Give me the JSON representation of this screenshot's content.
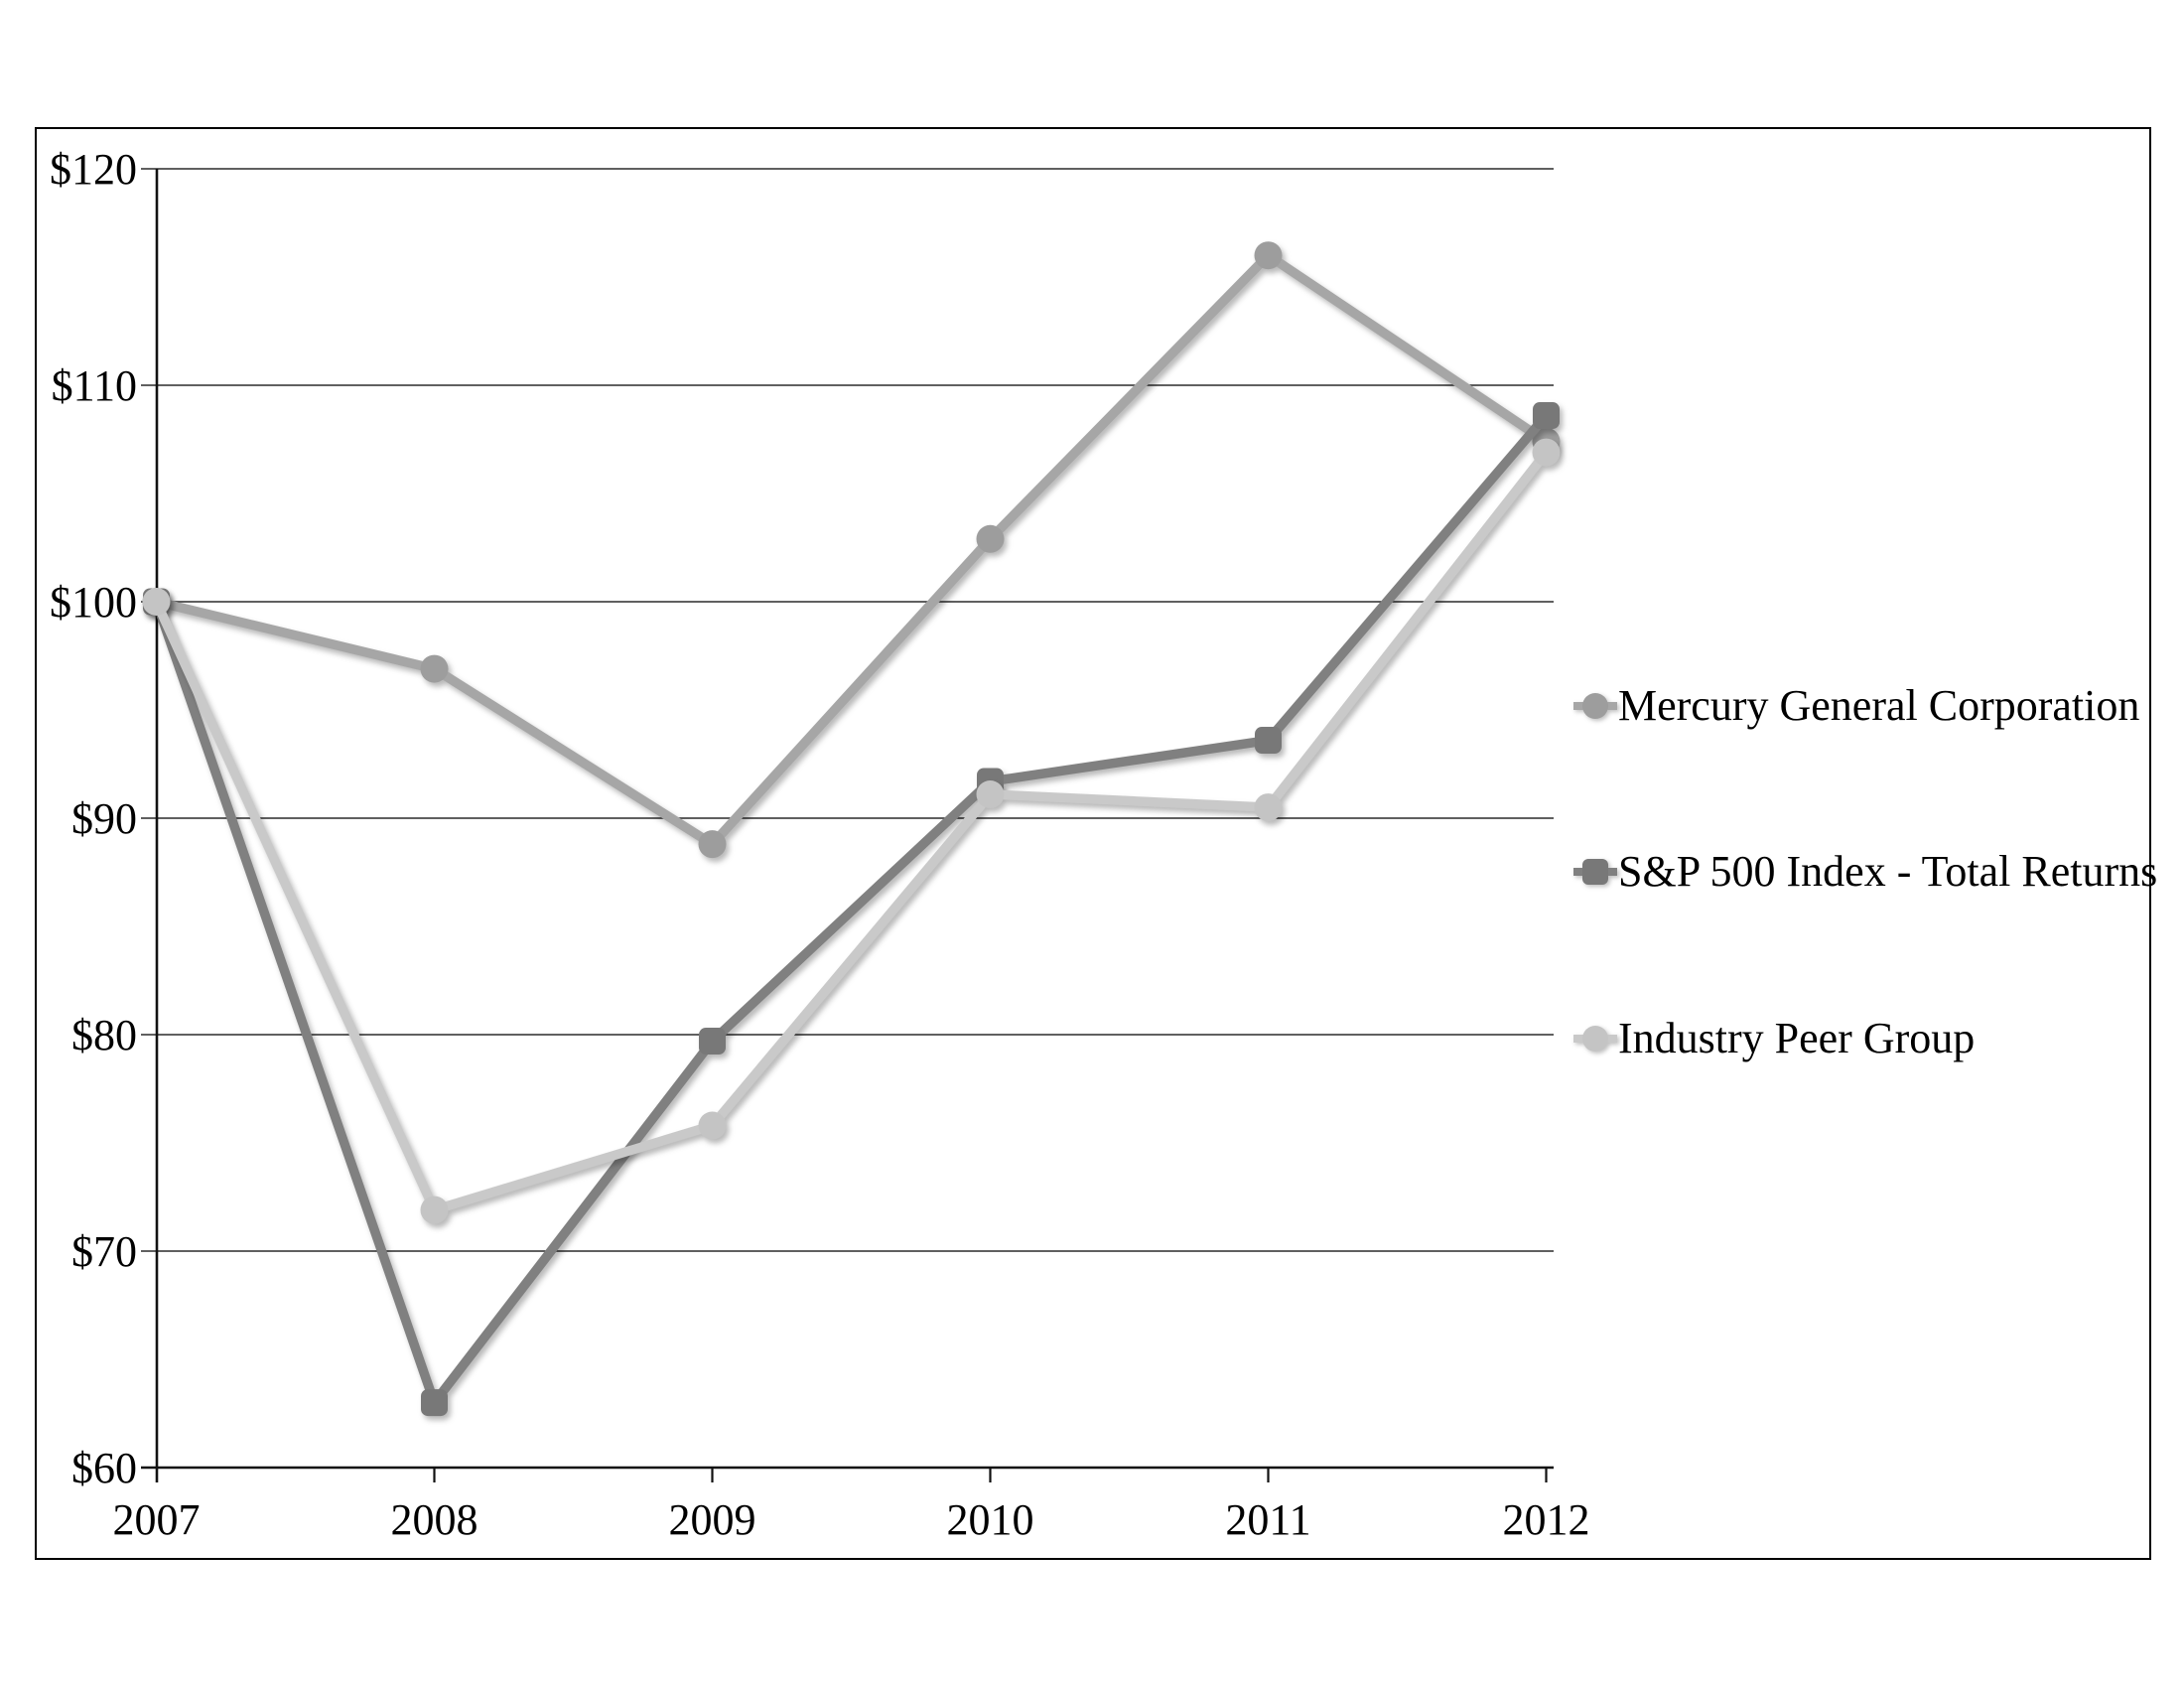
{
  "chart_data": {
    "type": "line",
    "title": "",
    "categories": [
      "2007",
      "2008",
      "2009",
      "2010",
      "2011",
      "2012"
    ],
    "x": [
      2007,
      2008,
      2009,
      2010,
      2011,
      2012
    ],
    "y_axis": {
      "min": 60,
      "max": 120,
      "step": 10,
      "tick_labels": [
        "$60",
        "$70",
        "$80",
        "$90",
        "$100",
        "$110",
        "$120"
      ],
      "currency": "USD"
    },
    "grid": true,
    "legend_position": "right",
    "series": [
      {
        "name": "Mercury General Corporation",
        "marker": "circle",
        "color": "#a6a6a6",
        "marker_color": "#9d9d9d",
        "values": [
          100,
          96.9,
          88.8,
          102.9,
          116.0,
          107.4
        ]
      },
      {
        "name": "S&P 500 Index - Total Returns",
        "marker": "square",
        "color": "#808080",
        "marker_color": "#787878",
        "values": [
          100,
          63.0,
          79.7,
          91.7,
          93.6,
          108.6
        ]
      },
      {
        "name": "Industry Peer Group",
        "marker": "circle",
        "color": "#c9c9c9",
        "marker_color": "#c4c4c4",
        "values": [
          100,
          71.9,
          75.8,
          91.1,
          90.5,
          106.9
        ]
      }
    ]
  }
}
